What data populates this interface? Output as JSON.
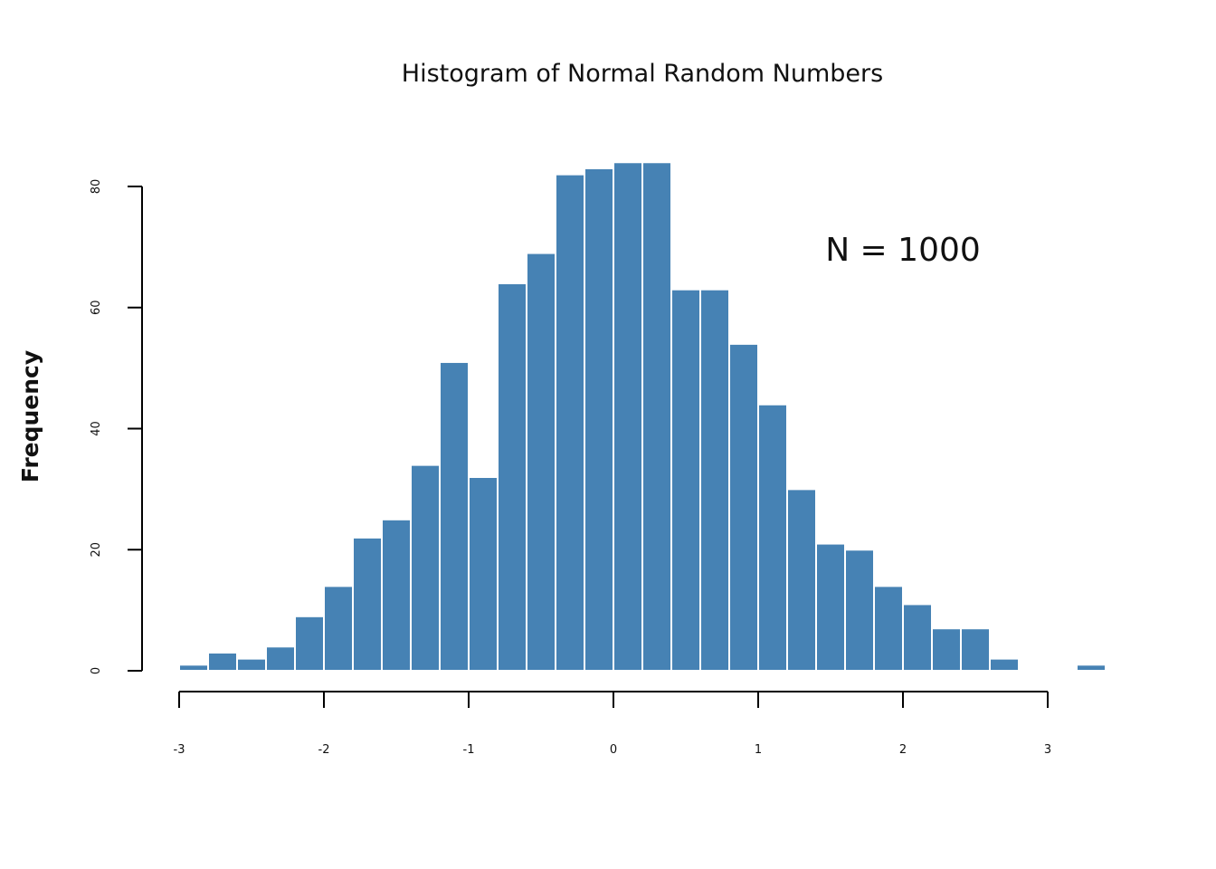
{
  "chart_data": {
    "type": "bar",
    "title": "Histogram of Normal Random Numbers",
    "xlabel": "",
    "ylabel": "Frequency",
    "annotation": "N = 1000",
    "bar_color": "#4682b4",
    "bar_border_color": "#ffffff",
    "bin_width": 0.2,
    "bin_edges_start": -3.0,
    "bins": [
      {
        "x0": -3.0,
        "x1": -2.8,
        "count": 1
      },
      {
        "x0": -2.8,
        "x1": -2.6,
        "count": 3
      },
      {
        "x0": -2.6,
        "x1": -2.4,
        "count": 2
      },
      {
        "x0": -2.4,
        "x1": -2.2,
        "count": 4
      },
      {
        "x0": -2.2,
        "x1": -2.0,
        "count": 9
      },
      {
        "x0": -2.0,
        "x1": -1.8,
        "count": 14
      },
      {
        "x0": -1.8,
        "x1": -1.6,
        "count": 22
      },
      {
        "x0": -1.6,
        "x1": -1.4,
        "count": 25
      },
      {
        "x0": -1.4,
        "x1": -1.2,
        "count": 34
      },
      {
        "x0": -1.2,
        "x1": -1.0,
        "count": 51
      },
      {
        "x0": -1.0,
        "x1": -0.8,
        "count": 32
      },
      {
        "x0": -0.8,
        "x1": -0.6,
        "count": 64
      },
      {
        "x0": -0.6,
        "x1": -0.4,
        "count": 69
      },
      {
        "x0": -0.4,
        "x1": -0.2,
        "count": 82
      },
      {
        "x0": -0.2,
        "x1": 0.0,
        "count": 83
      },
      {
        "x0": 0.0,
        "x1": 0.2,
        "count": 84
      },
      {
        "x0": 0.2,
        "x1": 0.4,
        "count": 84
      },
      {
        "x0": 0.4,
        "x1": 0.6,
        "count": 63
      },
      {
        "x0": 0.6,
        "x1": 0.8,
        "count": 63
      },
      {
        "x0": 0.8,
        "x1": 1.0,
        "count": 54
      },
      {
        "x0": 1.0,
        "x1": 1.2,
        "count": 44
      },
      {
        "x0": 1.2,
        "x1": 1.4,
        "count": 30
      },
      {
        "x0": 1.4,
        "x1": 1.6,
        "count": 21
      },
      {
        "x0": 1.6,
        "x1": 1.8,
        "count": 20
      },
      {
        "x0": 1.8,
        "x1": 2.0,
        "count": 14
      },
      {
        "x0": 2.0,
        "x1": 2.2,
        "count": 11
      },
      {
        "x0": 2.2,
        "x1": 2.4,
        "count": 7
      },
      {
        "x0": 2.4,
        "x1": 2.6,
        "count": 7
      },
      {
        "x0": 2.6,
        "x1": 2.8,
        "count": 2
      },
      {
        "x0": 2.8,
        "x1": 3.0,
        "count": 0
      },
      {
        "x0": 3.0,
        "x1": 3.2,
        "count": 0
      },
      {
        "x0": 3.2,
        "x1": 3.4,
        "count": 1
      }
    ],
    "x_ticks": [
      {
        "value": -3,
        "label": "-3"
      },
      {
        "value": -2,
        "label": "-2"
      },
      {
        "value": -1,
        "label": "-1"
      },
      {
        "value": 0,
        "label": "0"
      },
      {
        "value": 1,
        "label": "1"
      },
      {
        "value": 2,
        "label": "2"
      },
      {
        "value": 3,
        "label": "3"
      }
    ],
    "y_ticks": [
      {
        "value": 0,
        "label": "0"
      },
      {
        "value": 20,
        "label": "20"
      },
      {
        "value": 40,
        "label": "40"
      },
      {
        "value": 60,
        "label": "60"
      },
      {
        "value": 80,
        "label": "80"
      }
    ],
    "xlim": [
      -3.0,
      3.4
    ],
    "ylim": [
      0,
      84
    ],
    "grid": false,
    "legend": "none"
  }
}
